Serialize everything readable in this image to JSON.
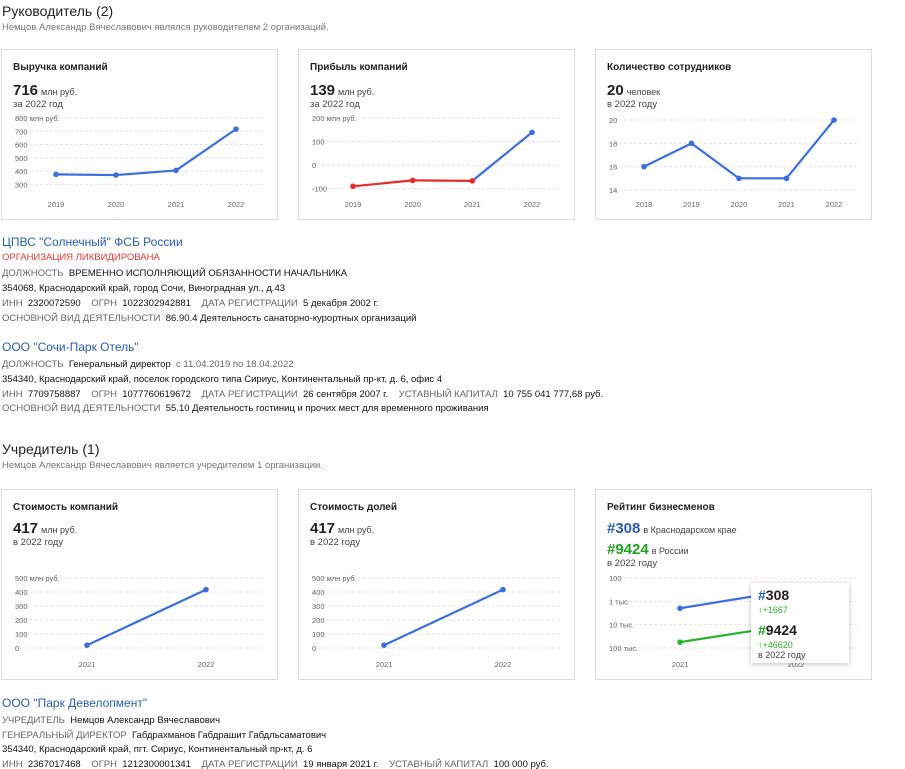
{
  "section_head": {
    "title": "Руководитель (2)",
    "subtitle": "Немцов Александр Вячеславович являлся руководителем 2 организаций."
  },
  "head_cards": {
    "revenue": {
      "title": "Выручка компаний",
      "value": "716",
      "unit": "млн руб.",
      "period": "за 2022 год"
    },
    "profit": {
      "title": "Прибыль компаний",
      "value": "139",
      "unit": "млн руб.",
      "period": "за 2022 год"
    },
    "employees": {
      "title": "Количество сотрудников",
      "value": "20",
      "unit": "человек",
      "period": "в 2022 году"
    }
  },
  "org1": {
    "name": "ЦПВС \"Солнечный\" ФСБ России",
    "status": "ОРГАНИЗАЦИЯ ЛИКВИДИРОВАНА",
    "position_label": "ДОЛЖНОСТЬ",
    "position": "ВРЕМЕННО ИСПОЛНЯЮЩИЙ ОБЯЗАННОСТИ НАЧАЛЬНИКА",
    "address": "354068, Краснодарский край, город Сочи, Виноградная ул., д.43",
    "inn_label": "ИНН",
    "inn": "2320072590",
    "ogrn_label": "ОГРН",
    "ogrn": "1022302942881",
    "reg_label": "ДАТА РЕГИСТРАЦИИ",
    "reg": "5 декабря 2002 г.",
    "activity_label": "ОСНОВНОЙ ВИД ДЕЯТЕЛЬНОСТИ",
    "activity": "86.90.4 Деятельность санаторно-курортных организаций"
  },
  "org2": {
    "name": "ООО \"Сочи-Парк Отель\"",
    "position_label": "ДОЛЖНОСТЬ",
    "position": "Генеральный директор",
    "position_dates": "с 11.04.2019 по 18.04.2022",
    "address": "354340, Краснодарский край, поселок городского типа Сириус, Континентальный пр-кт, д. 6, офис 4",
    "inn_label": "ИНН",
    "inn": "7709758887",
    "ogrn_label": "ОГРН",
    "ogrn": "1077760619672",
    "reg_label": "ДАТА РЕГИСТРАЦИИ",
    "reg": "26 сентября 2007 г.",
    "capital_label": "УСТАВНЫЙ КАПИТАЛ",
    "capital": "10 755 041 777,68 руб.",
    "activity_label": "ОСНОВНОЙ ВИД ДЕЯТЕЛЬНОСТИ",
    "activity": "55.10 Деятельность гостиниц и прочих мест для временного проживания"
  },
  "section_found": {
    "title": "Учредитель (1)",
    "subtitle": "Немцов Александр Вячеславович является учредителем 1 организации."
  },
  "found_cards": {
    "company_value": {
      "title": "Стоимость компаний",
      "value": "417",
      "unit": "млн руб.",
      "period": "в 2022 году"
    },
    "share_value": {
      "title": "Стоимость долей",
      "value": "417",
      "unit": "млн руб.",
      "period": "в 2022 году"
    },
    "rating": {
      "title": "Рейтинг бизнесменов",
      "regional_hash": "#308",
      "regional_text": "в Краснодарском крае",
      "national_hash": "#9424",
      "national_text": "в России",
      "period": "в 2022 году",
      "tooltip": {
        "regional": "#308",
        "regional_delta": "↑+1667",
        "national": "#9424",
        "national_delta": "↑+46620",
        "period": "в 2022 году"
      }
    }
  },
  "org3": {
    "name": "ООО \"Парк Девелопмент\"",
    "founder_label": "УЧРЕДИТЕЛЬ",
    "founder": "Немцов Александр Вячеславович",
    "director_label": "ГЕНЕРАЛЬНЫЙ ДИРЕКТОР",
    "director": "Габдрахманов Габдрашит Габдльсаматович",
    "address": "354340, Краснодарский край, пгт. Сириус, Континентальный пр-кт, д. 6",
    "inn_label": "ИНН",
    "inn": "2367017468",
    "ogrn_label": "ОГРН",
    "ogrn": "1212300001341",
    "reg_label": "ДАТА РЕГИСТРАЦИИ",
    "reg": "19 января 2021 г.",
    "capital_label": "УСТАВНЫЙ КАПИТАЛ",
    "capital": "100 000 руб."
  },
  "colors": {
    "blue": "#3b6fe0",
    "red": "#e82a2a",
    "green": "#2ab32a",
    "grid": "#e5e5e5"
  },
  "chart_data": [
    {
      "id": "revenue",
      "type": "line",
      "x": [
        "2019",
        "2020",
        "2021",
        "2022"
      ],
      "series": [
        {
          "values": [
            375,
            370,
            405,
            716
          ]
        }
      ],
      "ylim": [
        250,
        800
      ],
      "yticks": [
        {
          "v": 800,
          "t": "800 млн руб."
        },
        {
          "v": 700,
          "t": "700"
        },
        {
          "v": 600,
          "t": "600"
        },
        {
          "v": 500,
          "t": "500"
        },
        {
          "v": 400,
          "t": "400"
        },
        {
          "v": 300,
          "t": "300"
        }
      ],
      "grid": true
    },
    {
      "id": "profit",
      "type": "line",
      "x": [
        "2019",
        "2020",
        "2021",
        "2022"
      ],
      "series": [
        {
          "values": [
            -90,
            -65,
            -67,
            139
          ]
        }
      ],
      "negative_color": "red",
      "ylim": [
        -110,
        200
      ],
      "yticks": [
        {
          "v": 200,
          "t": "200 млн руб."
        },
        {
          "v": 100,
          "t": "100"
        },
        {
          "v": 0,
          "t": "0"
        },
        {
          "v": -100,
          "t": "-100"
        }
      ],
      "grid": true
    },
    {
      "id": "employees",
      "type": "line",
      "x": [
        "2018",
        "2019",
        "2020",
        "2021",
        "2022"
      ],
      "series": [
        {
          "values": [
            16,
            18,
            15,
            15,
            20
          ]
        }
      ],
      "ylim": [
        14,
        20
      ],
      "yticks": [
        {
          "v": 20,
          "t": "20"
        },
        {
          "v": 18,
          "t": "18"
        },
        {
          "v": 16,
          "t": "16"
        },
        {
          "v": 14,
          "t": "14"
        }
      ],
      "grid": true
    },
    {
      "id": "company_value",
      "type": "line",
      "x": [
        "2021",
        "2022"
      ],
      "series": [
        {
          "values": [
            20,
            417
          ]
        }
      ],
      "ylim": [
        0,
        500
      ],
      "yticks": [
        {
          "v": 500,
          "t": "500 млн руб."
        },
        {
          "v": 400,
          "t": "400"
        },
        {
          "v": 300,
          "t": "300"
        },
        {
          "v": 200,
          "t": "200"
        },
        {
          "v": 100,
          "t": "100"
        },
        {
          "v": 0,
          "t": "0"
        }
      ],
      "grid": true
    },
    {
      "id": "share_value",
      "type": "line",
      "x": [
        "2021",
        "2022"
      ],
      "series": [
        {
          "values": [
            20,
            417
          ]
        }
      ],
      "ylim": [
        0,
        500
      ],
      "yticks": [
        {
          "v": 500,
          "t": "500 млн руб."
        },
        {
          "v": 400,
          "t": "400"
        },
        {
          "v": 300,
          "t": "300"
        },
        {
          "v": 200,
          "t": "200"
        },
        {
          "v": 100,
          "t": "100"
        },
        {
          "v": 0,
          "t": "0"
        }
      ],
      "grid": true
    },
    {
      "id": "rating",
      "type": "line",
      "x": [
        "2021",
        "2022"
      ],
      "series": [
        {
          "name": "в Краснодарском крае",
          "color": "blue",
          "values": [
            1975,
            308
          ]
        },
        {
          "name": "в России",
          "color": "green",
          "values": [
            56044,
            9424
          ]
        }
      ],
      "scale": "log-reversed",
      "ylim": [
        100,
        100000
      ],
      "yticks": [
        {
          "v": 100,
          "t": "100"
        },
        {
          "v": 1000,
          "t": "1 тыс."
        },
        {
          "v": 10000,
          "t": "10 тыс."
        },
        {
          "v": 100000,
          "t": "100 тыс."
        }
      ],
      "grid": true
    }
  ]
}
